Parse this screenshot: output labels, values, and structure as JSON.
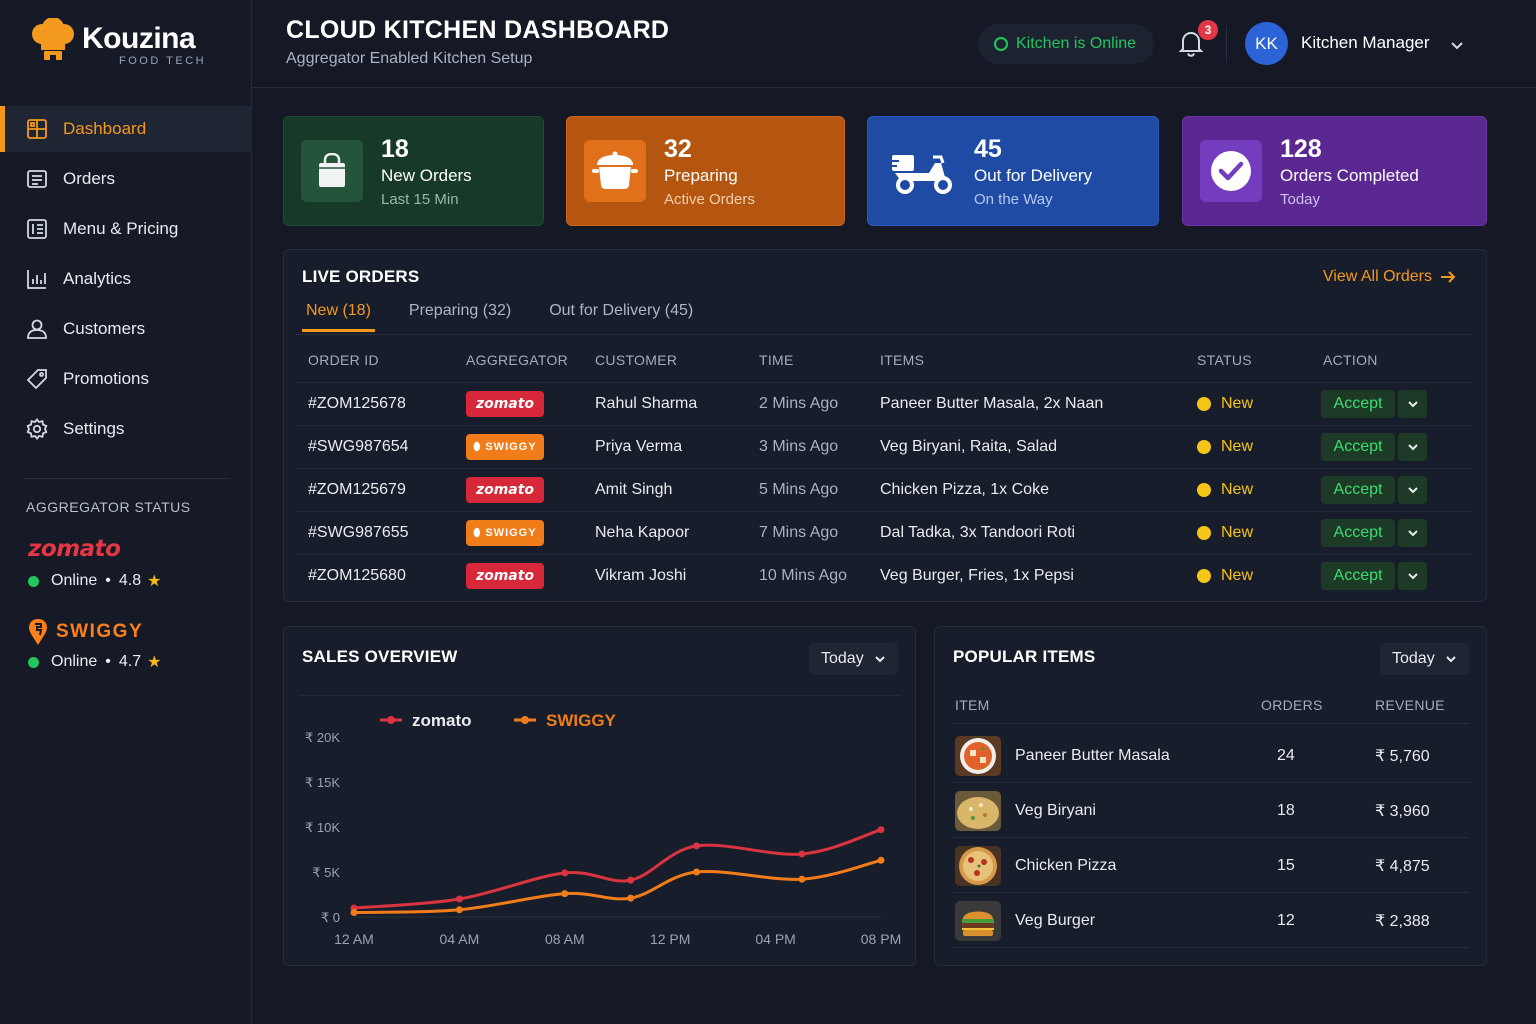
{
  "brand": {
    "name": "Kouzina",
    "tagline": "FOOD TECH",
    "accent": "#f39a1e"
  },
  "sidebar": {
    "items": [
      {
        "label": "Dashboard",
        "icon": "dashboard-icon",
        "active": true
      },
      {
        "label": "Orders",
        "icon": "orders-icon"
      },
      {
        "label": "Menu & Pricing",
        "icon": "menu-icon"
      },
      {
        "label": "Analytics",
        "icon": "analytics-icon"
      },
      {
        "label": "Customers",
        "icon": "customers-icon"
      },
      {
        "label": "Promotions",
        "icon": "promotions-icon"
      },
      {
        "label": "Settings",
        "icon": "settings-icon"
      }
    ],
    "aggregator_title": "AGGREGATOR STATUS",
    "aggregators": [
      {
        "name": "zomato",
        "status": "Online",
        "rating": "4.8",
        "color": "#e23744"
      },
      {
        "name": "SWIGGY",
        "status": "Online",
        "rating": "4.7",
        "color": "#fc8019"
      }
    ]
  },
  "header": {
    "title": "CLOUD KITCHEN DASHBOARD",
    "subtitle": "Aggregator Enabled Kitchen Setup",
    "kitchen_status": "Kitchen is Online",
    "notifications": "3",
    "user_initials": "KK",
    "user_name": "Kitchen Manager"
  },
  "stats": [
    {
      "value": "18",
      "label": "New Orders",
      "sub": "Last 15 Min",
      "icon": "shopping-bag-icon"
    },
    {
      "value": "32",
      "label": "Preparing",
      "sub": "Active Orders",
      "icon": "cooking-pot-icon"
    },
    {
      "value": "45",
      "label": "Out for Delivery",
      "sub": "On the Way",
      "icon": "scooter-icon"
    },
    {
      "value": "128",
      "label": "Orders Completed",
      "sub": "Today",
      "icon": "check-circle-icon"
    }
  ],
  "live_orders": {
    "title": "LIVE ORDERS",
    "view_all": "View All Orders",
    "tabs": [
      "New (18)",
      "Preparing (32)",
      "Out for Delivery (45)"
    ],
    "columns": [
      "ORDER ID",
      "AGGREGATOR",
      "CUSTOMER",
      "TIME",
      "ITEMS",
      "STATUS",
      "ACTION"
    ],
    "rows": [
      {
        "id": "#ZOM125678",
        "aggregator": "zomato",
        "customer": "Rahul Sharma",
        "time": "2 Mins Ago",
        "items": "Paneer Butter Masala, 2x Naan",
        "status": "New",
        "action": "Accept"
      },
      {
        "id": "#SWG987654",
        "aggregator": "SWIGGY",
        "customer": "Priya Verma",
        "time": "3 Mins Ago",
        "items": "Veg Biryani, Raita, Salad",
        "status": "New",
        "action": "Accept"
      },
      {
        "id": "#ZOM125679",
        "aggregator": "zomato",
        "customer": "Amit Singh",
        "time": "5 Mins Ago",
        "items": "Chicken Pizza, 1x Coke",
        "status": "New",
        "action": "Accept"
      },
      {
        "id": "#SWG987655",
        "aggregator": "SWIGGY",
        "customer": "Neha Kapoor",
        "time": "7 Mins Ago",
        "items": "Dal Tadka, 3x Tandoori Roti",
        "status": "New",
        "action": "Accept"
      },
      {
        "id": "#ZOM125680",
        "aggregator": "zomato",
        "customer": "Vikram Joshi",
        "time": "10 Mins Ago",
        "items": "Veg Burger, Fries, 1x Pepsi",
        "status": "New",
        "action": "Accept"
      }
    ]
  },
  "sales": {
    "title": "SALES OVERVIEW",
    "period": "Today"
  },
  "chart_data": {
    "type": "line",
    "x": [
      "12 AM",
      "04 AM",
      "08 AM",
      "12 PM",
      "04 PM",
      "08 PM"
    ],
    "y_ticks": [
      "₹ 0",
      "₹ 5K",
      "₹ 10K",
      "₹ 15K",
      "₹ 20K"
    ],
    "ylim": [
      0,
      20000
    ],
    "series": [
      {
        "name": "zomato",
        "color": "#d9343f",
        "x": [
          0,
          4,
          8,
          10.5,
          13,
          17,
          20
        ],
        "values": [
          1000,
          2000,
          4900,
          4100,
          7900,
          7000,
          9700
        ]
      },
      {
        "name": "SWIGGY",
        "color": "#f07d1a",
        "x": [
          0,
          4,
          8,
          10.5,
          13,
          17,
          20
        ],
        "values": [
          500,
          800,
          2600,
          2100,
          5000,
          4200,
          6300
        ]
      }
    ],
    "legend": "top-left",
    "grid": false
  },
  "popular": {
    "title": "POPULAR ITEMS",
    "period": "Today",
    "columns": [
      "ITEM",
      "ORDERS",
      "REVENUE"
    ],
    "rows": [
      {
        "item": "Paneer Butter Masala",
        "orders": "24",
        "revenue": "₹ 5,760",
        "thumb": "paneer-thumb"
      },
      {
        "item": "Veg Biryani",
        "orders": "18",
        "revenue": "₹ 3,960",
        "thumb": "biryani-thumb"
      },
      {
        "item": "Chicken Pizza",
        "orders": "15",
        "revenue": "₹ 4,875",
        "thumb": "pizza-thumb"
      },
      {
        "item": "Veg Burger",
        "orders": "12",
        "revenue": "₹ 2,388",
        "thumb": "burger-thumb"
      }
    ]
  }
}
